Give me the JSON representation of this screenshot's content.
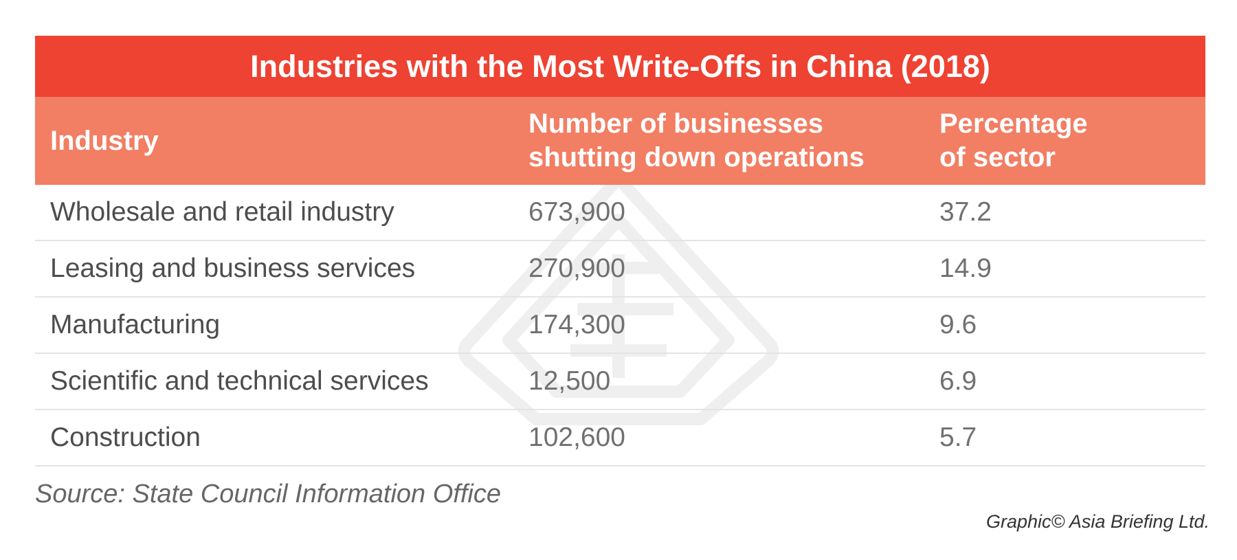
{
  "chart_data": {
    "type": "table",
    "title": "Industries with the Most Write-Offs in China (2018)",
    "columns": [
      "Industry",
      "Number of businesses shutting down operations",
      "Percentage of sector"
    ],
    "rows": [
      {
        "industry": "Wholesale and retail industry",
        "count": "673,900",
        "percentage": "37.2"
      },
      {
        "industry": "Leasing and business services",
        "count": "270,900",
        "percentage": "14.9"
      },
      {
        "industry": "Manufacturing",
        "count": "174,300",
        "percentage": "9.6"
      },
      {
        "industry": "Scientific and technical services",
        "count": "12,500",
        "percentage": "6.9"
      },
      {
        "industry": "Construction",
        "count": "102,600",
        "percentage": "5.7"
      }
    ],
    "values": [
      673900,
      270900,
      174300,
      12500,
      102600
    ],
    "percentages": [
      37.2,
      14.9,
      9.6,
      6.9,
      5.7
    ]
  },
  "headers": {
    "industry": "Industry",
    "count_line1": "Number of businesses",
    "count_line2": "shutting down operations",
    "pct_line1": "Percentage",
    "pct_line2": "of sector"
  },
  "footer": {
    "source": "Source: State Council Information Office",
    "credit": "Graphic© Asia Briefing Ltd."
  },
  "colors": {
    "title_bar": "#ee4232",
    "header_row": "#f27e63",
    "row_divider": "#e4e4e4"
  }
}
